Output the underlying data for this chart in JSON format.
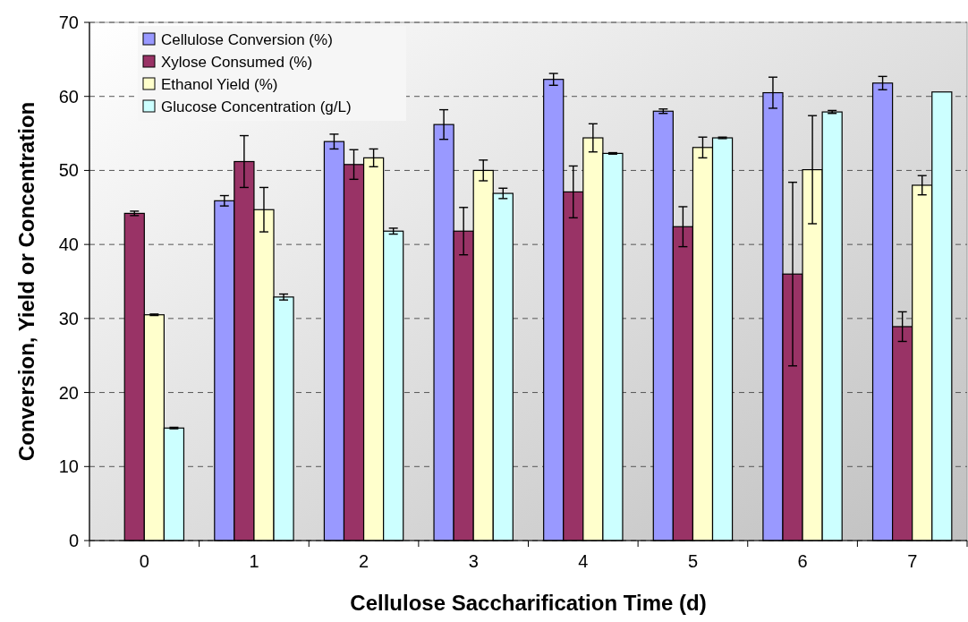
{
  "chart_data": {
    "type": "bar",
    "xlabel": "Cellulose Saccharification Time (d)",
    "ylabel": "Conversion, Yield or Concentration",
    "categories": [
      "0",
      "1",
      "2",
      "3",
      "4",
      "5",
      "6",
      "7"
    ],
    "series": [
      {
        "name": "Cellulose Conversion (%)",
        "color": "#9999ff",
        "values": [
          0,
          45.9,
          53.9,
          56.2,
          62.3,
          58.0,
          60.5,
          61.8
        ],
        "errors": [
          null,
          0.7,
          1.0,
          2.0,
          0.8,
          0.3,
          2.1,
          0.9
        ]
      },
      {
        "name": "Xylose Consumed (%)",
        "color": "#993366",
        "values": [
          44.2,
          51.2,
          50.8,
          41.8,
          47.1,
          42.4,
          36.0,
          28.9
        ],
        "errors": [
          0.3,
          3.5,
          2.0,
          3.2,
          3.5,
          2.7,
          12.4,
          2.0
        ]
      },
      {
        "name": "Ethanol Yield (%)",
        "color": "#ffffcc",
        "values": [
          30.5,
          44.7,
          51.7,
          50.0,
          54.4,
          53.1,
          50.1,
          48.0
        ],
        "errors": [
          0.1,
          3.0,
          1.2,
          1.4,
          1.9,
          1.4,
          7.3,
          1.3
        ]
      },
      {
        "name": "Glucose Concentration (g/L)",
        "color": "#ccffff",
        "values": [
          15.2,
          32.9,
          41.8,
          46.9,
          52.3,
          54.4,
          57.9,
          60.6
        ],
        "errors": [
          0.1,
          0.4,
          0.4,
          0.7,
          0.1,
          0.1,
          0.2,
          null
        ]
      }
    ],
    "ylim": [
      0,
      70
    ],
    "yticks": [
      0,
      10,
      20,
      30,
      40,
      50,
      60,
      70
    ],
    "grid": "y",
    "legend": "top left"
  }
}
